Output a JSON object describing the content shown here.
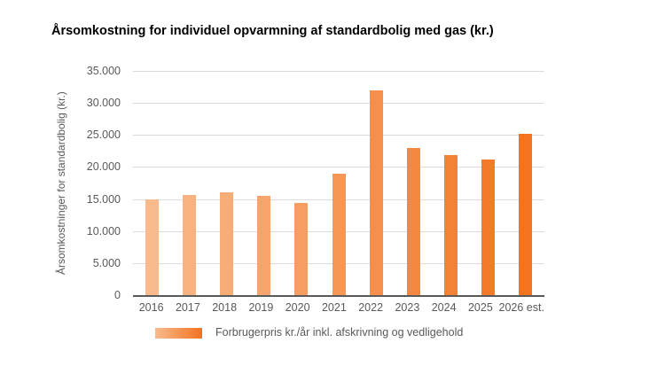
{
  "title": "Årsomkostning for individuel opvarmning af standardbolig med gas (kr.)",
  "chart_data": {
    "type": "bar",
    "title": "Årsomkostning for individuel opvarmning af standardbolig med gas (kr.)",
    "categories": [
      "2016",
      "2017",
      "2018",
      "2019",
      "2020",
      "2021",
      "2022",
      "2023",
      "2024",
      "2025",
      "2026 est."
    ],
    "values": [
      15000,
      15700,
      16100,
      15500,
      14400,
      19000,
      32000,
      23000,
      21800,
      21100,
      25200
    ],
    "xlabel": "",
    "ylabel": "Årsomkostninger for standardbolig (kr.)",
    "ylim": [
      0,
      35000
    ],
    "ytick_step": 5000,
    "ytick_labels": [
      "0",
      "5.000",
      "10.000",
      "15.000",
      "20.000",
      "25.000",
      "30.000",
      "35.000"
    ],
    "grid": true,
    "legend": {
      "label": "Forbrugerpris kr./år inkl. afskrivning og vedligehold",
      "position": "bottom"
    },
    "bar_color_start": "#F9BA8C",
    "bar_color_end": "#F27320"
  },
  "colors": {
    "background": "#FFFFFF",
    "grid": "#DCDCDC",
    "axis_line": "#595959",
    "text_gray": "#595959",
    "title": "#000000",
    "bar_gradient_start": "#F9BA8C",
    "bar_gradient_end": "#F27320"
  }
}
